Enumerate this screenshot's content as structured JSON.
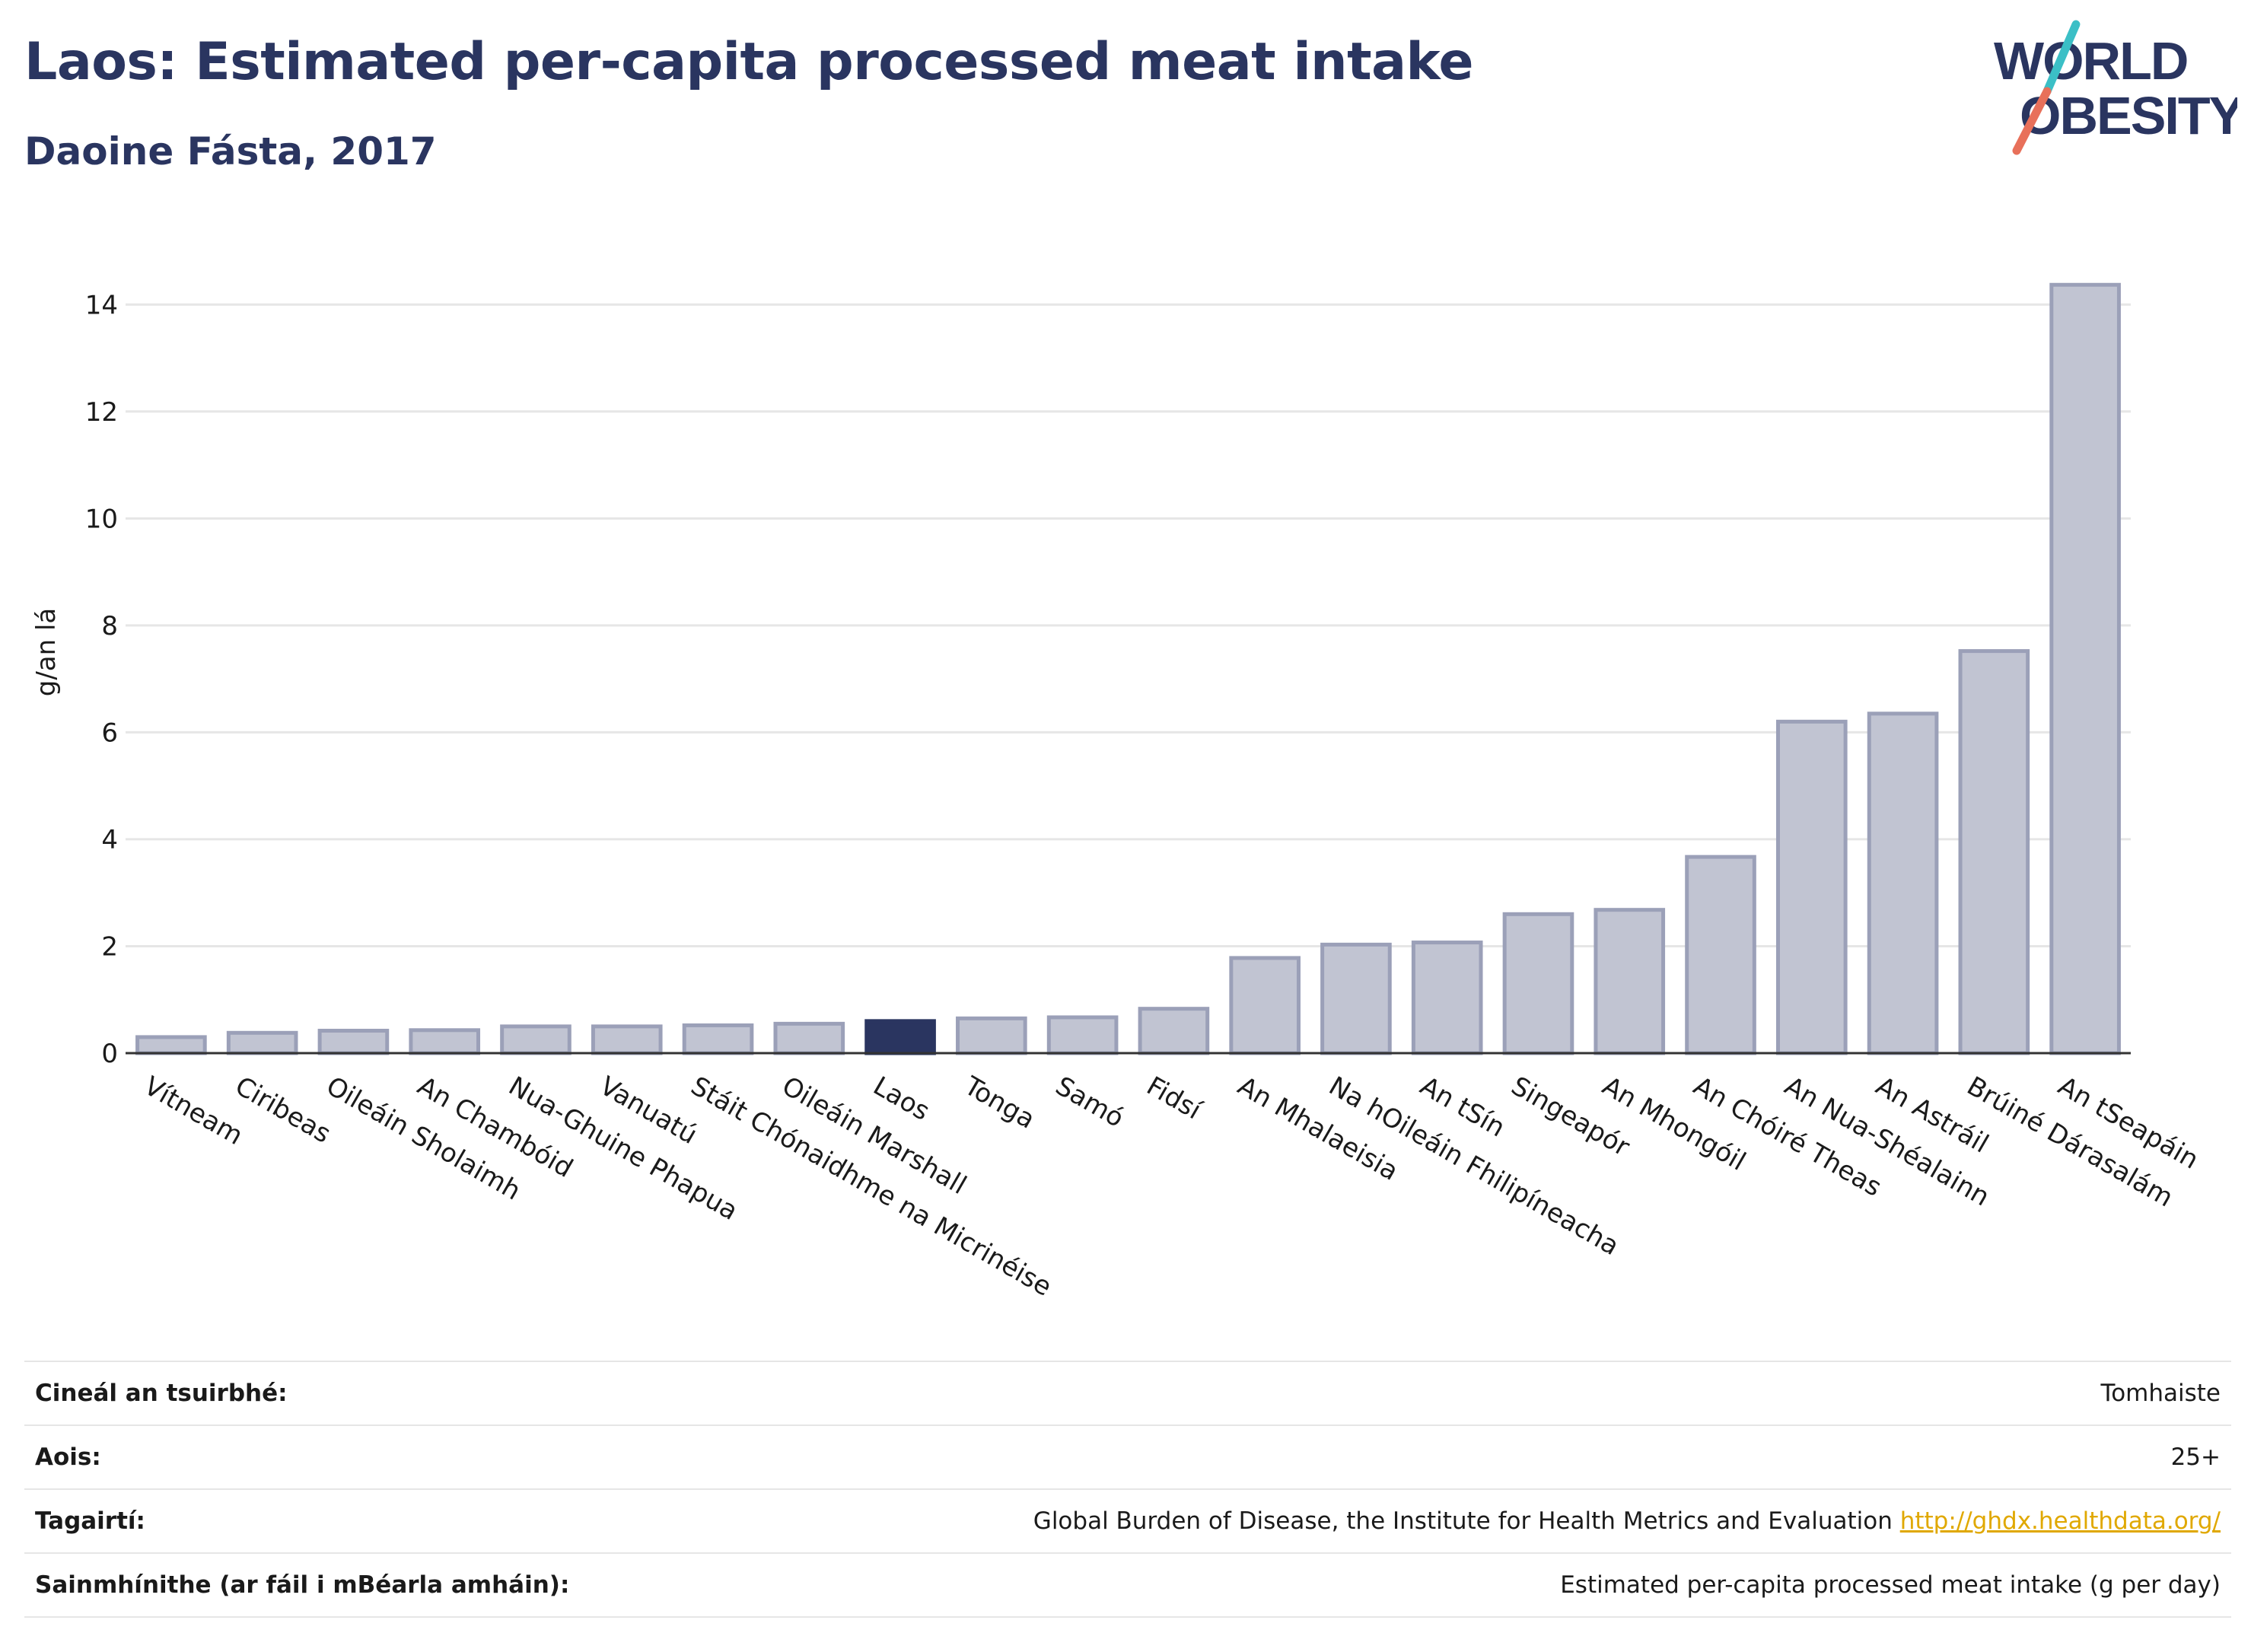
{
  "header": {
    "title": "Laos: Estimated per-capita processed meat intake",
    "subtitle": "Daoine Fásta, 2017"
  },
  "logo": {
    "line1": "WORLD",
    "line2": "OBESITY",
    "text_color": "#2a3560",
    "slash_top_color": "#3bbfc6",
    "slash_bottom_color": "#e8705a"
  },
  "chart_data": {
    "type": "bar",
    "ylabel": "g/an lá",
    "ylim": [
      0,
      15
    ],
    "yticks": [
      0,
      2,
      4,
      6,
      8,
      10,
      12,
      14
    ],
    "grid": true,
    "highlight_category": "Laos",
    "colors": {
      "bar": "#c1c4d2",
      "bar_border": "#9ba0b8",
      "highlight": "#2a3560",
      "grid": "#e6e6e6",
      "axis": "#333333"
    },
    "categories": [
      "Vítneam",
      "Ciribeas",
      "Oileáin Sholaimh",
      "An Chambóid",
      "Nua-Ghuine Phapua",
      "Vanuatú",
      "Stáit Chónaidhme na Micrinéise",
      "Oileáin Marshall",
      "Laos",
      "Tonga",
      "Samó",
      "Fidsí",
      "An Mhalaeisia",
      "Na hOileáin Fhilipíneacha",
      "An tSín",
      "Singeapór",
      "An Mhongóil",
      "An Chóiré Theas",
      "An Nua-Shéalainn",
      "An Astráil",
      "Brúiné Dárasalám",
      "An tSeapáin"
    ],
    "values": [
      0.3,
      0.38,
      0.42,
      0.43,
      0.5,
      0.5,
      0.52,
      0.55,
      0.6,
      0.65,
      0.67,
      0.83,
      1.78,
      2.03,
      2.07,
      2.6,
      2.68,
      3.67,
      6.2,
      6.35,
      7.52,
      14.37
    ]
  },
  "meta": {
    "rows": [
      {
        "label": "Cineál an tsuirbhé:",
        "value": "Tomhaiste"
      },
      {
        "label": "Aois:",
        "value": "25+"
      },
      {
        "label": "Tagairtí:",
        "value": "Global Burden of Disease, the Institute for Health Metrics and Evaluation",
        "link": "http://ghdx.healthdata.org/"
      },
      {
        "label": "Sainmhínithe (ar fáil i mBéarla amháin):",
        "value": "Estimated per-capita processed meat intake (g per day)"
      }
    ]
  }
}
